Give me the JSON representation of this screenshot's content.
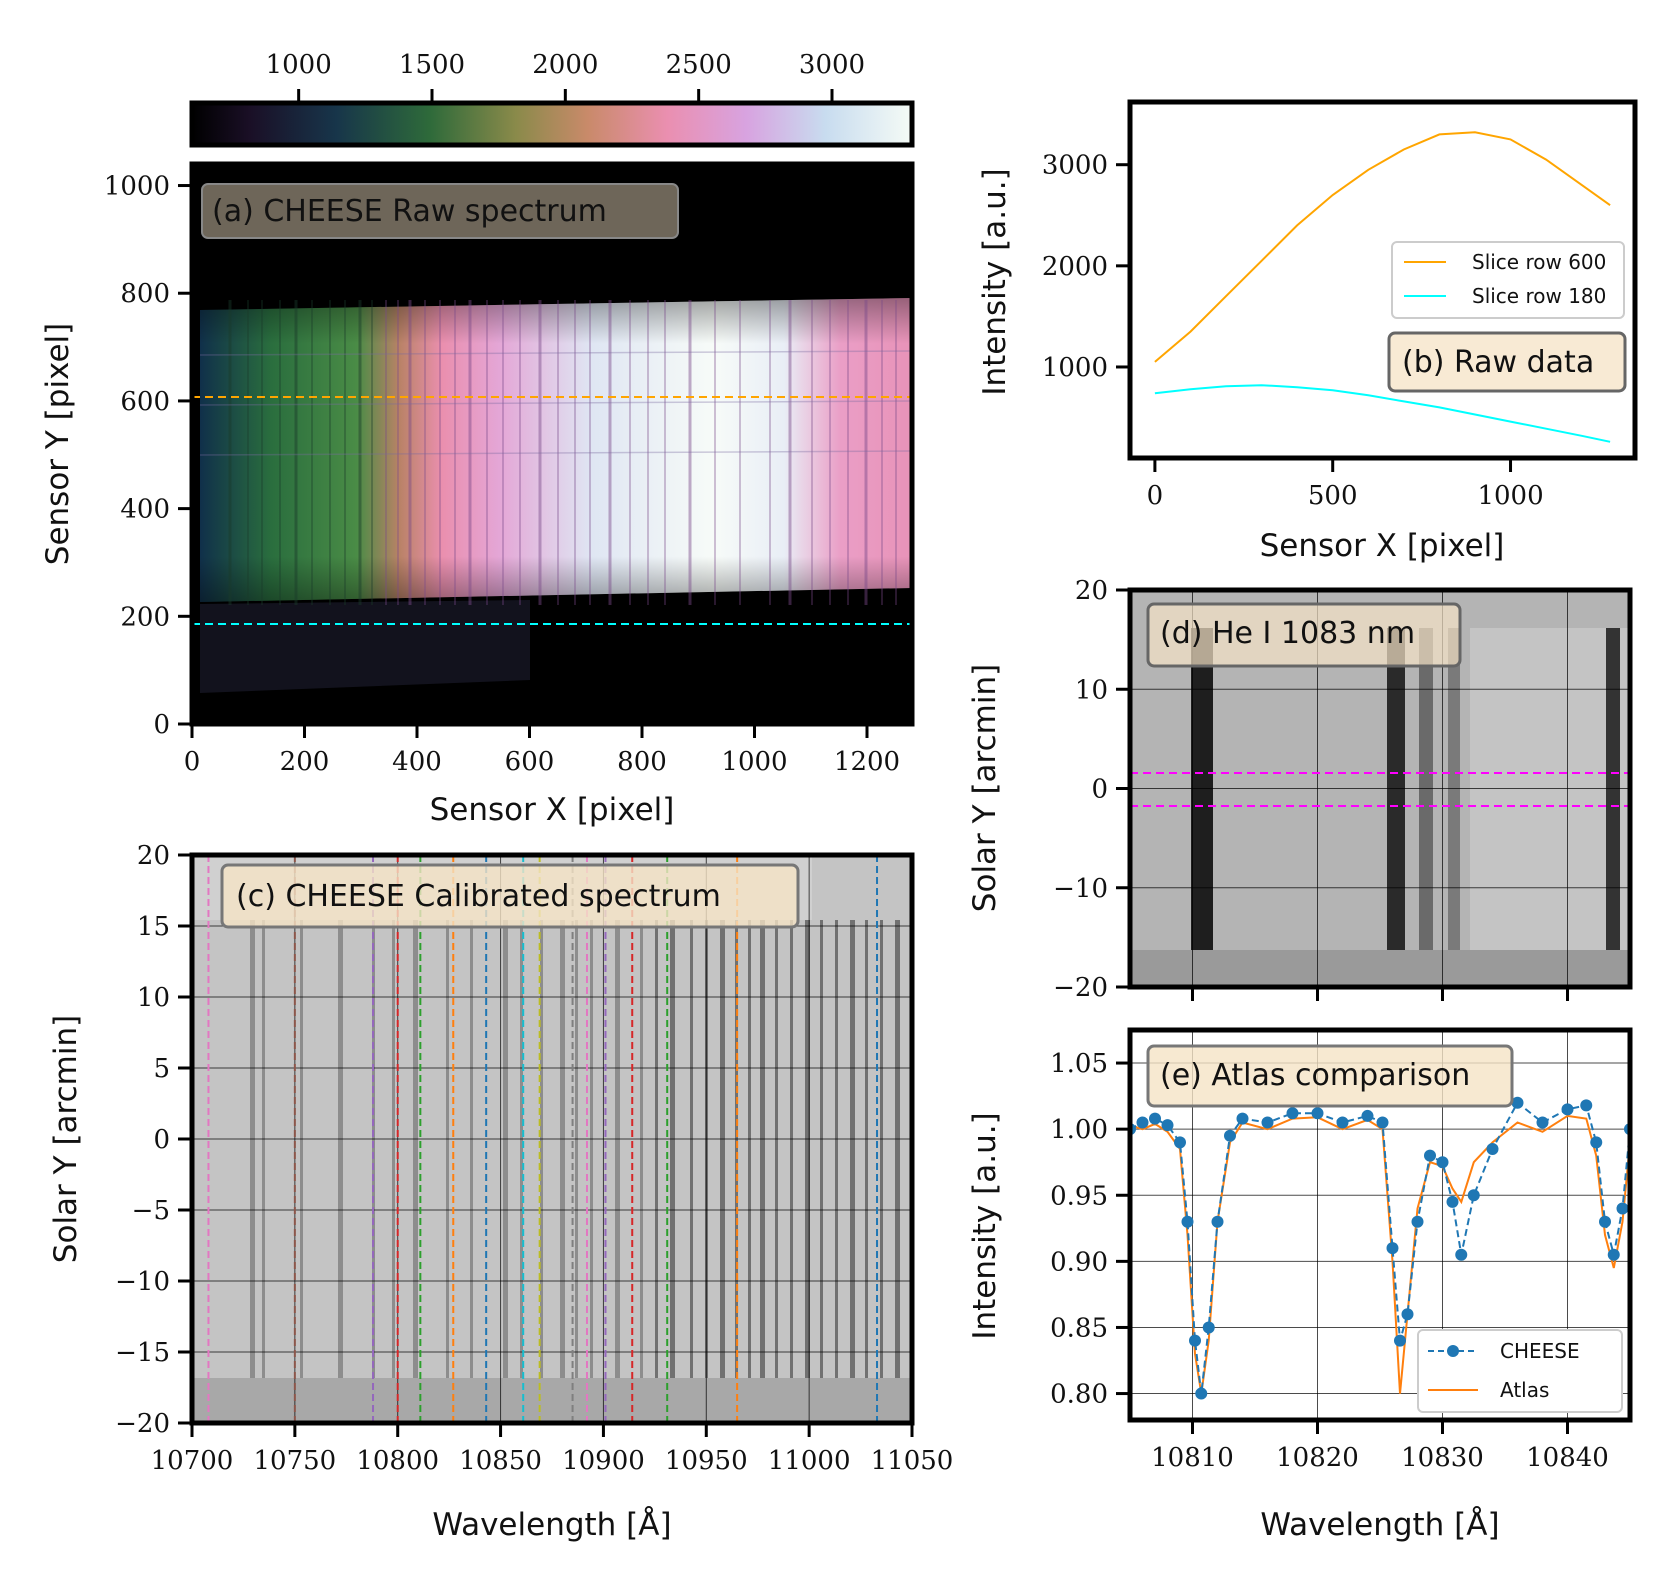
{
  "colors": {
    "orange": "#FFA500",
    "cyan": "#00FFFF",
    "magenta": "#FF00FF",
    "cheese": "#1f77b4",
    "atlas": "#ff7f0e",
    "label_box": "#f5e3c6"
  },
  "chart_data": [
    {
      "id": "colorbar",
      "type": "colorbar",
      "ticks": [
        "1000",
        "1500",
        "2000",
        "2500",
        "3000"
      ],
      "tick_values": [
        1000,
        1500,
        2000,
        2500,
        3000
      ],
      "range": [
        600,
        3300
      ]
    },
    {
      "id": "a",
      "type": "heatmap",
      "title": "(a) CHEESE Raw spectrum",
      "xlabel": "Sensor X [pixel]",
      "ylabel": "Sensor Y [pixel]",
      "xlim": [
        0,
        1280
      ],
      "ylim": [
        0,
        1040
      ],
      "xticks": [
        "0",
        "200",
        "400",
        "600",
        "800",
        "1000",
        "1200"
      ],
      "xtick_values": [
        0,
        200,
        400,
        600,
        800,
        1000,
        1200
      ],
      "yticks": [
        "0",
        "200",
        "400",
        "600",
        "800",
        "1000"
      ],
      "ytick_values": [
        0,
        200,
        400,
        600,
        800,
        1000
      ],
      "hlines": [
        {
          "y": 600,
          "color": "orange"
        },
        {
          "y": 180,
          "color": "cyan"
        }
      ]
    },
    {
      "id": "b",
      "type": "line",
      "title": "(b) Raw data",
      "xlabel": "Sensor X [pixel]",
      "ylabel": "Intensity [a.u.]",
      "xlim": [
        -70,
        1350
      ],
      "ylim": [
        100,
        3620
      ],
      "xticks": [
        "0",
        "500",
        "1000"
      ],
      "xtick_values": [
        0,
        500,
        1000
      ],
      "yticks": [
        "1000",
        "2000",
        "3000"
      ],
      "ytick_values": [
        1000,
        2000,
        3000
      ],
      "series": [
        {
          "name": "Slice row 600",
          "color": "orange",
          "x": [
            0,
            100,
            200,
            300,
            400,
            500,
            600,
            700,
            800,
            900,
            1000,
            1100,
            1200,
            1280
          ],
          "values": [
            1050,
            1350,
            1700,
            2050,
            2400,
            2700,
            2950,
            3150,
            3300,
            3320,
            3250,
            3050,
            2800,
            2600
          ]
        },
        {
          "name": "Slice row 180",
          "color": "cyan",
          "x": [
            0,
            100,
            200,
            300,
            400,
            500,
            600,
            700,
            800,
            900,
            1000,
            1100,
            1200,
            1280
          ],
          "values": [
            740,
            780,
            810,
            820,
            800,
            770,
            720,
            660,
            600,
            530,
            460,
            390,
            320,
            260
          ]
        }
      ]
    },
    {
      "id": "c",
      "type": "heatmap",
      "title": "(c) CHEESE Calibrated spectrum",
      "xlabel": "Wavelength [Å]",
      "ylabel": "Solar Y [arcmin]",
      "xlim": [
        10700,
        11050
      ],
      "ylim": [
        -20,
        20
      ],
      "xticks": [
        "10700",
        "10750",
        "10800",
        "10850",
        "10900",
        "10950",
        "11000",
        "11050"
      ],
      "xtick_values": [
        10700,
        10750,
        10800,
        10850,
        10900,
        10950,
        11000,
        11050
      ],
      "yticks": [
        "20",
        "15",
        "10",
        "5",
        "0",
        "−5",
        "−10",
        "−15",
        "−20"
      ],
      "ytick_values": [
        20,
        15,
        10,
        5,
        0,
        -5,
        -10,
        -15,
        -20
      ],
      "vlines": [
        {
          "x": 10708,
          "color": "#e377c2"
        },
        {
          "x": 10750,
          "color": "#8c564b"
        },
        {
          "x": 10788,
          "color": "#9467bd"
        },
        {
          "x": 10800,
          "color": "#d62728"
        },
        {
          "x": 10811,
          "color": "#2ca02c"
        },
        {
          "x": 10827,
          "color": "#ff7f0e"
        },
        {
          "x": 10843,
          "color": "#1f77b4"
        },
        {
          "x": 10861,
          "color": "#17becf"
        },
        {
          "x": 10869,
          "color": "#bcbd22"
        },
        {
          "x": 10885,
          "color": "#7f7f7f"
        },
        {
          "x": 10892,
          "color": "#e377c2"
        },
        {
          "x": 10901,
          "color": "#9467bd"
        },
        {
          "x": 10914,
          "color": "#d62728"
        },
        {
          "x": 10931,
          "color": "#2ca02c"
        },
        {
          "x": 10965,
          "color": "#ff7f0e"
        },
        {
          "x": 11033,
          "color": "#1f77b4"
        }
      ]
    },
    {
      "id": "d",
      "type": "heatmap",
      "title": "(d) He I 1083 nm",
      "ylabel": "Solar Y [arcmin]",
      "xlim": [
        10805,
        10845
      ],
      "ylim": [
        -20,
        20
      ],
      "yticks": [
        "20",
        "10",
        "0",
        "−10",
        "−20"
      ],
      "ytick_values": [
        20,
        10,
        0,
        -10,
        -20
      ],
      "hlines": [
        {
          "y": 1.5,
          "color": "magenta"
        },
        {
          "y": -1.8,
          "color": "magenta"
        }
      ]
    },
    {
      "id": "e",
      "type": "line",
      "title": "(e) Atlas comparison",
      "xlabel": "Wavelength [Å]",
      "ylabel": "Intensity [a.u.]",
      "xlim": [
        10805,
        10845
      ],
      "ylim": [
        0.78,
        1.075
      ],
      "xticks": [
        "10810",
        "10820",
        "10830",
        "10840"
      ],
      "xtick_values": [
        10810,
        10820,
        10830,
        10840
      ],
      "yticks": [
        "1.05",
        "1.00",
        "0.95",
        "0.90",
        "0.85",
        "0.80"
      ],
      "ytick_values": [
        1.05,
        1.0,
        0.95,
        0.9,
        0.85,
        0.8
      ],
      "series": [
        {
          "name": "CHEESE",
          "color": "cheese",
          "style": "dashed-markers",
          "x": [
            10805,
            10806,
            10807,
            10808,
            10809,
            10809.6,
            10810.2,
            10810.7,
            10811.3,
            10812,
            10813,
            10814,
            10816,
            10818,
            10820,
            10822,
            10824,
            10825.2,
            10826,
            10826.6,
            10827.2,
            10828,
            10829,
            10830,
            10830.8,
            10831.5,
            10832.5,
            10834,
            10836,
            10838,
            10840,
            10841.5,
            10842.3,
            10843,
            10843.7,
            10844.4,
            10845
          ],
          "values": [
            1.0,
            1.005,
            1.008,
            1.003,
            0.99,
            0.93,
            0.84,
            0.8,
            0.85,
            0.93,
            0.995,
            1.008,
            1.005,
            1.012,
            1.012,
            1.005,
            1.01,
            1.005,
            0.91,
            0.84,
            0.86,
            0.93,
            0.98,
            0.975,
            0.945,
            0.905,
            0.95,
            0.985,
            1.02,
            1.005,
            1.015,
            1.018,
            0.99,
            0.93,
            0.905,
            0.94,
            1.0
          ]
        },
        {
          "name": "Atlas",
          "color": "atlas",
          "style": "solid",
          "x": [
            10805,
            10806,
            10807,
            10808,
            10809,
            10809.6,
            10810.2,
            10810.7,
            10811.3,
            10812,
            10813,
            10814,
            10816,
            10818,
            10820,
            10822,
            10824,
            10825.2,
            10826,
            10826.6,
            10827.2,
            10828,
            10829,
            10830,
            10830.8,
            10831.5,
            10832.5,
            10834,
            10836,
            10838,
            10840,
            10841.5,
            10842.3,
            10843,
            10843.7,
            10844.4,
            10845
          ],
          "values": [
            1.003,
            1.0,
            1.004,
            0.998,
            0.985,
            0.92,
            0.83,
            0.8,
            0.84,
            0.93,
            0.99,
            1.005,
            1.0,
            1.008,
            1.009,
            1.0,
            1.007,
            1.0,
            0.9,
            0.8,
            0.86,
            0.94,
            0.975,
            0.972,
            0.955,
            0.945,
            0.975,
            0.99,
            1.005,
            0.998,
            1.01,
            1.008,
            0.98,
            0.92,
            0.895,
            0.93,
            0.99
          ]
        }
      ]
    }
  ]
}
